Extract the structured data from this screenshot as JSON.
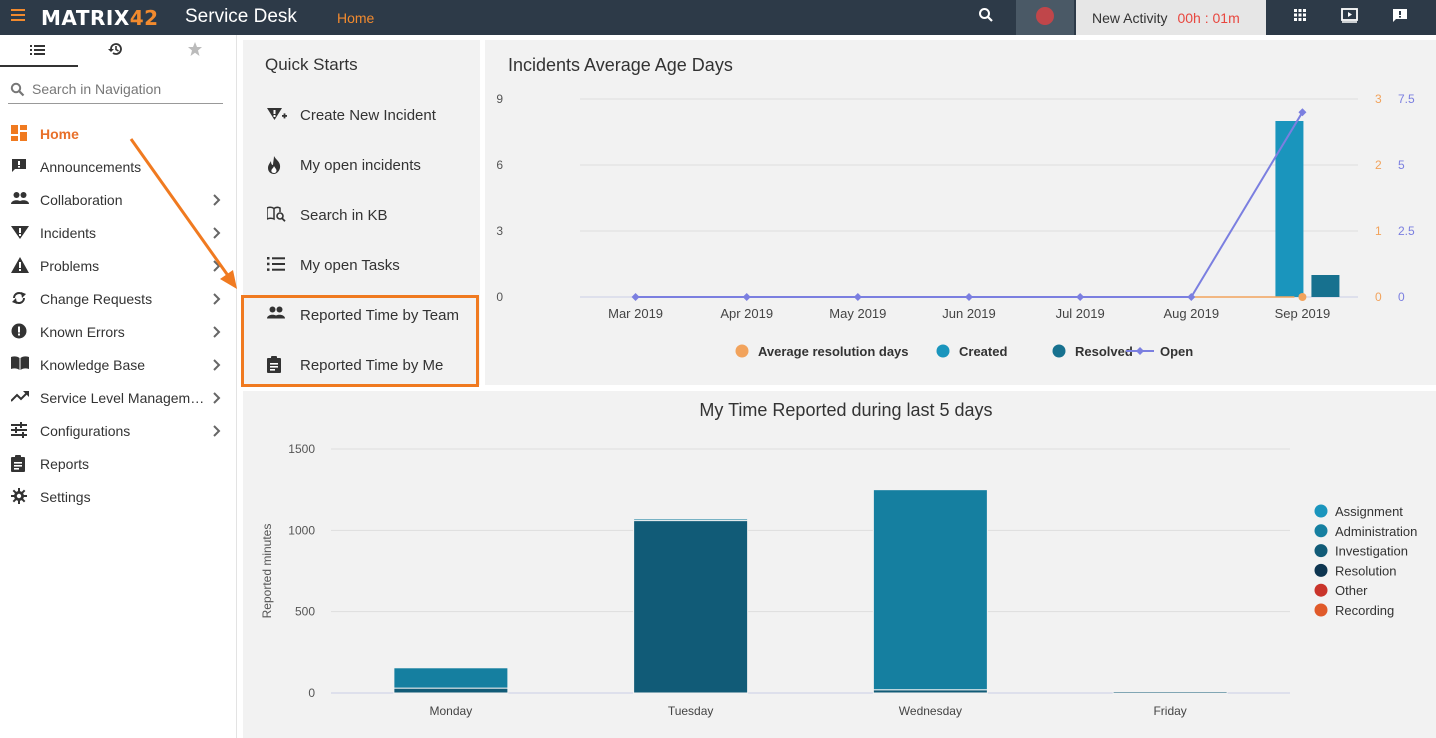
{
  "topbar": {
    "logo_main": "MATRIX",
    "logo_accent": "42",
    "product": "Service Desk",
    "breadcrumb": "Home",
    "activity_label": "New Activity",
    "activity_timer": "00h : 01m"
  },
  "sidebar": {
    "search_placeholder": "Search in Navigation",
    "items": [
      {
        "label": "Home",
        "icon": "dashboard-icon",
        "active": true,
        "chevron": false
      },
      {
        "label": "Announcements",
        "icon": "announcement-icon",
        "chevron": false
      },
      {
        "label": "Collaboration",
        "icon": "people-icon",
        "chevron": true
      },
      {
        "label": "Incidents",
        "icon": "incident-icon",
        "chevron": true
      },
      {
        "label": "Problems",
        "icon": "warning-icon",
        "chevron": true
      },
      {
        "label": "Change Requests",
        "icon": "sync-icon",
        "chevron": true
      },
      {
        "label": "Known Errors",
        "icon": "error-icon",
        "chevron": true
      },
      {
        "label": "Knowledge Base",
        "icon": "book-icon",
        "chevron": true
      },
      {
        "label": "Service Level Management",
        "icon": "trending-icon",
        "chevron": true
      },
      {
        "label": "Configurations",
        "icon": "tune-icon",
        "chevron": true
      },
      {
        "label": "Reports",
        "icon": "clipboard-icon",
        "chevron": false
      },
      {
        "label": "Settings",
        "icon": "gear-icon",
        "chevron": false
      }
    ]
  },
  "quick_starts": {
    "title": "Quick Starts",
    "items": [
      {
        "label": "Create New Incident",
        "icon": "incident-add-icon"
      },
      {
        "label": "My open incidents",
        "icon": "fire-icon"
      },
      {
        "label": "Search in KB",
        "icon": "kb-search-icon"
      },
      {
        "label": "My open Tasks",
        "icon": "task-list-icon"
      },
      {
        "label": "Reported Time by Team",
        "icon": "team-icon"
      },
      {
        "label": "Reported Time by Me",
        "icon": "clipboard-icon"
      }
    ]
  },
  "colors": {
    "accent": "#f28a2e",
    "created": "#1a95bd",
    "resolved": "#17718f",
    "open": "#7b7fe0",
    "avg_resolution": "#f2a35c"
  },
  "chart_data": [
    {
      "type": "bar",
      "title": "Incidents Average Age Days",
      "categories": [
        "Mar 2019",
        "Apr 2019",
        "May 2019",
        "Jun 2019",
        "Jul 2019",
        "Aug 2019",
        "Sep 2019"
      ],
      "y_left_ticks": [
        "0",
        "3",
        "6",
        "9"
      ],
      "y_right1_ticks": [
        "0",
        "1",
        "2",
        "3"
      ],
      "y_right2_ticks": [
        "0",
        "2.5",
        "5",
        "7.5"
      ],
      "ylim_left": [
        0,
        9
      ],
      "ylim_right1": [
        0,
        3
      ],
      "ylim_right2": [
        0,
        7.5
      ],
      "series": [
        {
          "name": "Average resolution days",
          "kind": "line",
          "axis": "right1",
          "color": "#f2a35c",
          "values": [
            0,
            0,
            0,
            0,
            0,
            0,
            0
          ]
        },
        {
          "name": "Created",
          "kind": "bar",
          "axis": "left",
          "color": "#1a95bd",
          "values": [
            0,
            0,
            0,
            0,
            0,
            0,
            8
          ]
        },
        {
          "name": "Resolved",
          "kind": "bar",
          "axis": "left",
          "color": "#17718f",
          "values": [
            0,
            0,
            0,
            0,
            0,
            0,
            1
          ]
        },
        {
          "name": "Open",
          "kind": "line",
          "axis": "right2",
          "color": "#7b7fe0",
          "values": [
            0,
            0,
            0,
            0,
            0,
            0,
            7
          ]
        }
      ],
      "legend_position": "bottom",
      "grid": true
    },
    {
      "type": "bar",
      "stacked": true,
      "title": "My Time Reported during last 5 days",
      "ylabel": "Reported minutes",
      "categories": [
        "Monday",
        "Tuesday",
        "Wednesday",
        "Friday"
      ],
      "y_ticks": [
        "0",
        "500",
        "1000",
        "1500"
      ],
      "ylim": [
        0,
        1500
      ],
      "series": [
        {
          "name": "Assignment",
          "color": "#1a95bd",
          "values": [
            0,
            0,
            0,
            0
          ]
        },
        {
          "name": "Administration",
          "color": "#157fa0",
          "values": [
            125,
            10,
            1230,
            0
          ]
        },
        {
          "name": "Investigation",
          "color": "#115b77",
          "values": [
            30,
            1060,
            20,
            8
          ]
        },
        {
          "name": "Resolution",
          "color": "#0d3550",
          "values": [
            0,
            0,
            0,
            0
          ]
        },
        {
          "name": "Other",
          "color": "#c9342a",
          "values": [
            0,
            0,
            0,
            0
          ]
        },
        {
          "name": "Recording",
          "color": "#e05a2a",
          "values": [
            0,
            0,
            0,
            0
          ]
        }
      ],
      "legend_position": "right",
      "grid": true
    }
  ]
}
